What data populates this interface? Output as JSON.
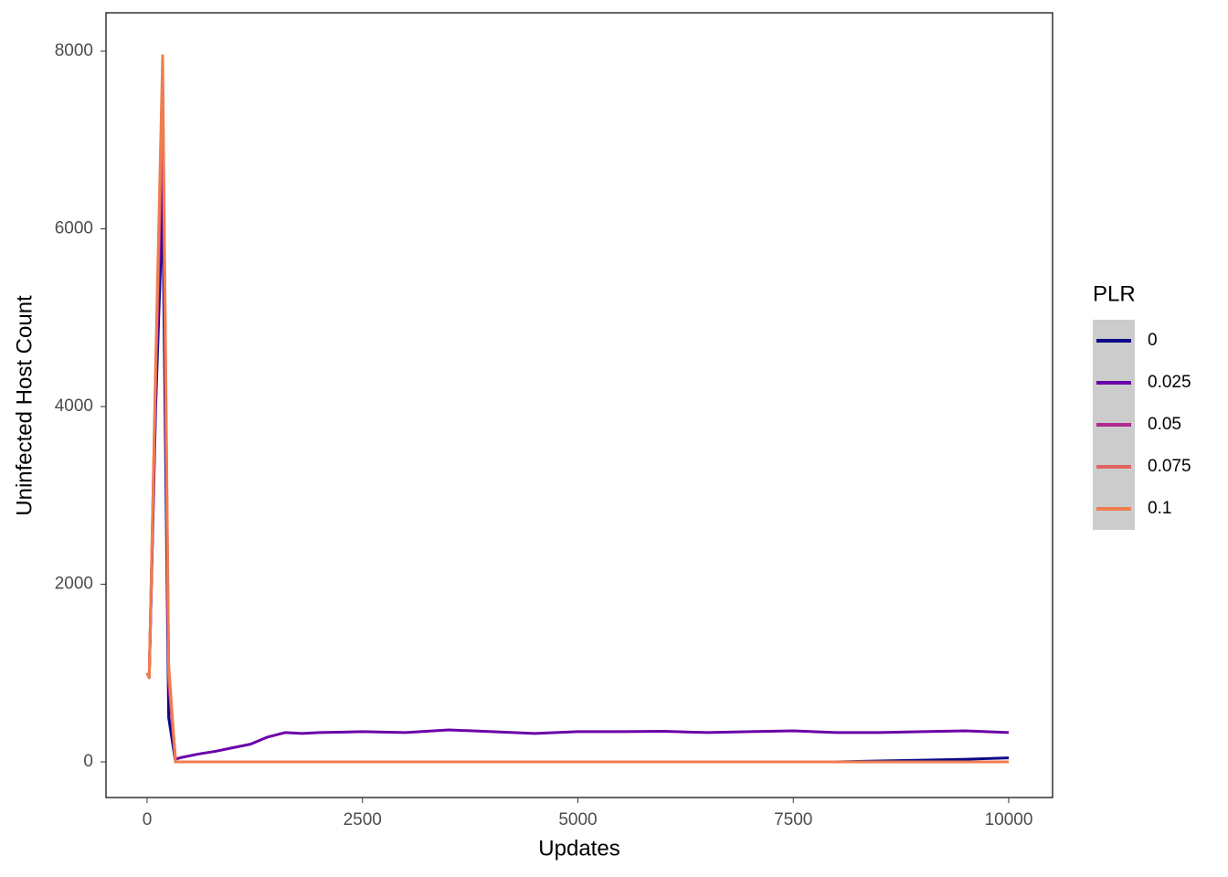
{
  "chart_data": {
    "type": "line",
    "x_label": "Updates",
    "y_label": "Uninfected Host Count",
    "legend_title": "PLR",
    "x": [
      0,
      25,
      100,
      180,
      250,
      330,
      400,
      600,
      800,
      1000,
      1200,
      1400,
      1600,
      1800,
      2000,
      2500,
      3000,
      3500,
      4000,
      4500,
      5000,
      5500,
      6000,
      6500,
      7000,
      7500,
      8000,
      8500,
      9000,
      9500,
      10000
    ],
    "series": [
      {
        "name": "0",
        "color": "#0d0887",
        "values": [
          1000,
          950,
          4000,
          6300,
          500,
          0,
          0,
          0,
          0,
          0,
          0,
          0,
          0,
          0,
          0,
          0,
          0,
          0,
          0,
          0,
          0,
          0,
          0,
          0,
          0,
          0,
          0,
          10,
          20,
          30,
          45
        ]
      },
      {
        "name": "0.025",
        "color": "#6a00a8",
        "values": [
          1000,
          950,
          4200,
          7000,
          900,
          30,
          50,
          90,
          120,
          160,
          200,
          280,
          330,
          320,
          330,
          340,
          330,
          360,
          340,
          320,
          340,
          340,
          345,
          330,
          340,
          350,
          330,
          330,
          340,
          350,
          330
        ]
      },
      {
        "name": "0.05",
        "color": "#b12a90",
        "values": [
          1000,
          950,
          4300,
          7400,
          900,
          0,
          0,
          0,
          0,
          0,
          0,
          0,
          0,
          0,
          0,
          0,
          0,
          0,
          0,
          0,
          0,
          0,
          0,
          0,
          0,
          0,
          0,
          0,
          0,
          0,
          0
        ]
      },
      {
        "name": "0.075",
        "color": "#e16462",
        "values": [
          1000,
          950,
          4400,
          7700,
          1000,
          0,
          0,
          0,
          0,
          0,
          0,
          0,
          0,
          0,
          0,
          0,
          0,
          0,
          0,
          0,
          0,
          0,
          0,
          0,
          0,
          0,
          0,
          0,
          0,
          0,
          0
        ]
      },
      {
        "name": "0.1",
        "color": "#ef7d50",
        "values": [
          1000,
          950,
          4500,
          7950,
          1100,
          0,
          0,
          0,
          0,
          0,
          0,
          0,
          0,
          0,
          0,
          0,
          0,
          0,
          0,
          0,
          0,
          0,
          0,
          0,
          0,
          0,
          0,
          0,
          0,
          0,
          0
        ]
      }
    ],
    "xlim": [
      -477,
      10509
    ],
    "ylim": [
      -401,
      8432
    ],
    "xticks": [
      0,
      2500,
      5000,
      7500,
      10000
    ],
    "yticks": [
      0,
      2000,
      4000,
      6000,
      8000
    ],
    "grid": false,
    "legend_position": "right"
  }
}
